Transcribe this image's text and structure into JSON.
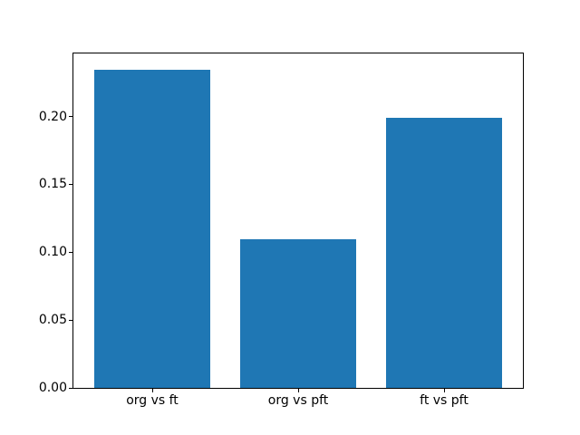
{
  "figure": {
    "background_color": "#ffffff",
    "axes_edge_color": "#000000",
    "tick_color": "#000000",
    "text_color": "#000000"
  },
  "chart_data": {
    "type": "bar",
    "title": "",
    "xlabel": "",
    "ylabel": "",
    "categories": [
      "org vs ft",
      "org vs pft",
      "ft vs pft"
    ],
    "values": [
      0.2347,
      0.1093,
      0.1993
    ],
    "bar_color": "#1f77b4",
    "bar_width_fraction": 0.8,
    "x_margin_fraction": 0.05,
    "ylim": [
      0,
      0.2464
    ],
    "ytick_values": [
      0.0,
      0.05,
      0.1,
      0.15,
      0.2
    ],
    "ytick_labels": [
      "0.00",
      "0.05",
      "0.10",
      "0.15",
      "0.20"
    ],
    "grid": false,
    "legend": null
  }
}
